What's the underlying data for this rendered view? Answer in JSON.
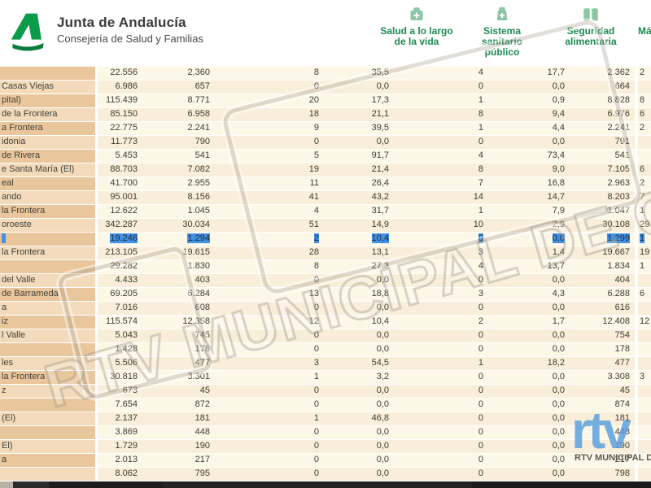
{
  "header": {
    "title": "Junta de Andalucía",
    "subtitle": "Consejería de Salud y Familias",
    "columns": [
      {
        "icon": "first-aid-kit-icon",
        "label": "Salud a lo largo\nde la vida"
      },
      {
        "icon": "medical-bag-icon",
        "label": "Sistema\nsanitario\npúblico"
      },
      {
        "icon": "food-jars-icon",
        "label": "Seguridad\nalimentaria"
      },
      {
        "icon": "cut-off-icon",
        "label": "Má"
      }
    ]
  },
  "table": {
    "note": "leftmost municipality-name column and rightmost value column are clipped by the viewport; labels below are the visible fragments",
    "rows": [
      {
        "label": "",
        "values": [
          "22.556",
          "2.360",
          "8",
          "35,5",
          "4",
          "17,7",
          "2.362"
        ],
        "partial": "2",
        "selected": false
      },
      {
        "label": "Casas Viejas",
        "values": [
          "6.986",
          "657",
          "0",
          "0,0",
          "0",
          "0,0",
          "664"
        ],
        "partial": "",
        "selected": false
      },
      {
        "label": "pital)",
        "values": [
          "115.439",
          "8.771",
          "20",
          "17,3",
          "1",
          "0,9",
          "8.828"
        ],
        "partial": "8",
        "selected": false
      },
      {
        "label": "de la Frontera",
        "values": [
          "85.150",
          "6.958",
          "18",
          "21,1",
          "8",
          "9,4",
          "6.976"
        ],
        "partial": "6",
        "selected": false
      },
      {
        "label": "a Frontera",
        "values": [
          "22.775",
          "2.241",
          "9",
          "39,5",
          "1",
          "4,4",
          "2.241"
        ],
        "partial": "2",
        "selected": false
      },
      {
        "label": "idonia",
        "values": [
          "11.773",
          "790",
          "0",
          "0,0",
          "0",
          "0,0",
          "791"
        ],
        "partial": "",
        "selected": false
      },
      {
        "label": "de Rivera",
        "values": [
          "5.453",
          "541",
          "5",
          "91,7",
          "4",
          "73,4",
          "541"
        ],
        "partial": "",
        "selected": false
      },
      {
        "label": "e Santa María (El)",
        "values": [
          "88.703",
          "7.082",
          "19",
          "21,4",
          "8",
          "9,0",
          "7.105"
        ],
        "partial": "6",
        "selected": false
      },
      {
        "label": "eal",
        "values": [
          "41.700",
          "2.955",
          "11",
          "26,4",
          "7",
          "16,8",
          "2.963"
        ],
        "partial": "2",
        "selected": false
      },
      {
        "label": "ando",
        "values": [
          "95.001",
          "8.156",
          "41",
          "43,2",
          "14",
          "14,7",
          "8.203"
        ],
        "partial": "7",
        "selected": false
      },
      {
        "label": "la Frontera",
        "values": [
          "12.622",
          "1.045",
          "4",
          "31,7",
          "1",
          "7,9",
          "1.047"
        ],
        "partial": "1",
        "selected": false
      },
      {
        "label": "oroeste",
        "values": [
          "342.287",
          "30.034",
          "51",
          "14,9",
          "10",
          "2,9",
          "30.108"
        ],
        "partial": "29",
        "selected": false
      },
      {
        "label": "",
        "values": [
          "19.246",
          "1.294",
          "2",
          "10,4",
          "0",
          "0,0",
          "1.299"
        ],
        "partial": "1",
        "selected": true
      },
      {
        "label": "la Frontera",
        "values": [
          "213.105",
          "19.615",
          "28",
          "13,1",
          "3",
          "1,4",
          "19.667"
        ],
        "partial": "19",
        "selected": false
      },
      {
        "label": "",
        "values": [
          "29.282",
          "1.830",
          "8",
          "27,3",
          "4",
          "13,7",
          "1.834"
        ],
        "partial": "1",
        "selected": false
      },
      {
        "label": "del Valle",
        "values": [
          "4.433",
          "403",
          "0",
          "0,0",
          "0",
          "0,0",
          "404"
        ],
        "partial": "",
        "selected": false
      },
      {
        "label": "de Barrameda",
        "values": [
          "69.205",
          "6.284",
          "13",
          "18,8",
          "3",
          "4,3",
          "6.288"
        ],
        "partial": "6",
        "selected": false
      },
      {
        "label": "a",
        "values": [
          "7.016",
          "608",
          "0",
          "0,0",
          "0",
          "0,0",
          "616"
        ],
        "partial": "",
        "selected": false
      },
      {
        "label": "iz",
        "values": [
          "115.574",
          "12.358",
          "12",
          "10,4",
          "2",
          "1,7",
          "12.408"
        ],
        "partial": "12",
        "selected": false
      },
      {
        "label": "l Valle",
        "values": [
          "5.043",
          "745",
          "0",
          "0,0",
          "0",
          "0,0",
          "754"
        ],
        "partial": "",
        "selected": false
      },
      {
        "label": "",
        "values": [
          "1.428",
          "178",
          "0",
          "0,0",
          "0",
          "0,0",
          "178"
        ],
        "partial": "",
        "selected": false
      },
      {
        "label": "les",
        "values": [
          "5.506",
          "477",
          "3",
          "54,5",
          "1",
          "18,2",
          "477"
        ],
        "partial": "",
        "selected": false
      },
      {
        "label": "la Frontera",
        "values": [
          "30.818",
          "3.301",
          "1",
          "3,2",
          "0",
          "0,0",
          "3.308"
        ],
        "partial": "3",
        "selected": false
      },
      {
        "label": "z",
        "values": [
          "673",
          "45",
          "0",
          "0,0",
          "0",
          "0,0",
          "45"
        ],
        "partial": "",
        "selected": false
      },
      {
        "label": "",
        "values": [
          "7.654",
          "872",
          "0",
          "0,0",
          "0",
          "0,0",
          "874"
        ],
        "partial": "",
        "selected": false
      },
      {
        "label": "(El)",
        "values": [
          "2.137",
          "181",
          "1",
          "46,8",
          "0",
          "0,0",
          "181"
        ],
        "partial": "",
        "selected": false
      },
      {
        "label": "",
        "values": [
          "3.869",
          "448",
          "0",
          "0,0",
          "0",
          "0,0",
          "448"
        ],
        "partial": "",
        "selected": false
      },
      {
        "label": "El)",
        "values": [
          "1.729",
          "190",
          "0",
          "0,0",
          "0",
          "0,0",
          "190"
        ],
        "partial": "",
        "selected": false
      },
      {
        "label": "a",
        "values": [
          "2.013",
          "217",
          "0",
          "0,0",
          "0",
          "0,0",
          "217"
        ],
        "partial": "",
        "selected": false
      },
      {
        "label": "",
        "values": [
          "8.062",
          "795",
          "0",
          "0,0",
          "0",
          "0,0",
          "798"
        ],
        "partial": "",
        "selected": false
      }
    ]
  },
  "watermark": {
    "text": "RTV MUNICIPAL DE CHIPIONA",
    "logo_text": "rtv",
    "caption": "RTV MUNICIPAL DE CH"
  },
  "colors": {
    "accent_green": "#0c9b4b",
    "logo_green_dark": "#0a7d3e",
    "header_green": "#1b8a4f",
    "icon_green": "#8cc7a5",
    "selection_blue": "#3f92e5",
    "selection_text": "#222c3c",
    "label_dark": "#e9c69b",
    "label_light": "#f2dabb",
    "cell_light": "#fdf7e8",
    "cell_dark": "#f8eed9",
    "text_color": "#3f3c35",
    "watermark_blue": "#579fe0",
    "taskbar": "#151515"
  }
}
